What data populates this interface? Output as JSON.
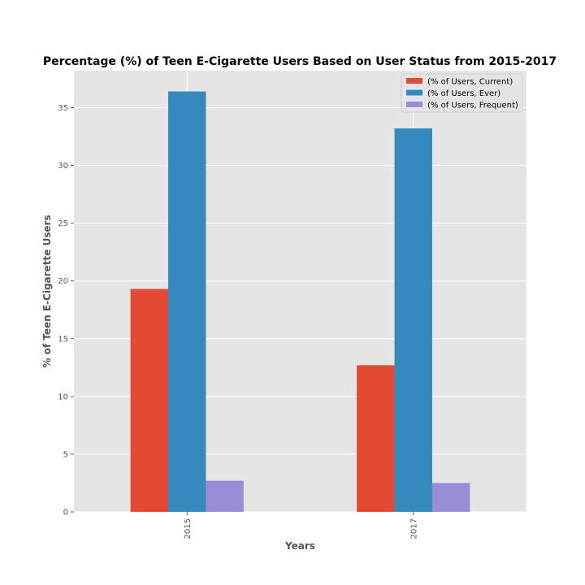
{
  "chart_data": {
    "type": "bar",
    "title": "Percentage (%) of Teen E-Cigarette Users Based on User Status from 2015-2017",
    "xlabel": "Years",
    "ylabel": "% of Teen E-Cigarette Users",
    "categories": [
      "2015",
      "2017"
    ],
    "series": [
      {
        "name": "(% of Users, Current)",
        "values": [
          19.3,
          12.7
        ],
        "color": "#e24a33"
      },
      {
        "name": "(% of Users, Ever)",
        "values": [
          36.4,
          33.2
        ],
        "color": "#348abd"
      },
      {
        "name": "(% of Users, Frequent)",
        "values": [
          2.7,
          2.5
        ],
        "color": "#988ed5"
      }
    ],
    "ylim": [
      0,
      38.2
    ],
    "yticks": [
      0,
      5,
      10,
      15,
      20,
      25,
      30,
      35
    ],
    "grid": true,
    "legend_position": "top-right",
    "background_color": "#e5e5e5",
    "grid_color": "#ffffff"
  }
}
